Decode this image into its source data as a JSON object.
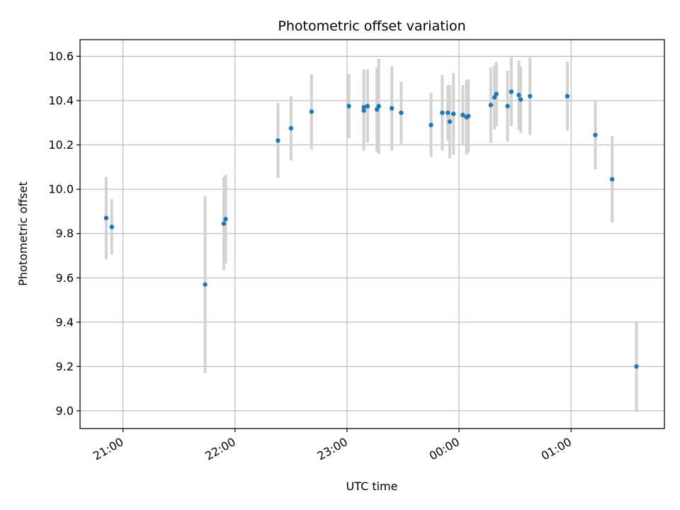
{
  "chart_data": {
    "type": "scatter",
    "title": "Photometric offset variation",
    "xlabel": "UTC time",
    "ylabel": "Photometric offset",
    "x_unit": "UTC time (HH:MM)",
    "xlim": [
      "20:37",
      "01:50"
    ],
    "ylim": [
      8.92,
      10.675
    ],
    "grid": true,
    "x_ticks": [
      "21:00",
      "22:00",
      "23:00",
      "00:00",
      "01:00"
    ],
    "y_ticks": [
      "9.0",
      "9.2",
      "9.4",
      "9.6",
      "9.8",
      "10.0",
      "10.2",
      "10.4",
      "10.6"
    ],
    "series": [
      {
        "marker_color": "#1f77b4",
        "errorbar_color": "#d3d3d3",
        "points": [
          {
            "x": "20:51",
            "y": 9.87,
            "err": 0.185
          },
          {
            "x": "20:54",
            "y": 9.83,
            "err": 0.125
          },
          {
            "x": "21:44",
            "y": 9.57,
            "err": 0.4
          },
          {
            "x": "21:54",
            "y": 9.845,
            "err": 0.21
          },
          {
            "x": "21:55",
            "y": 9.865,
            "err": 0.2
          },
          {
            "x": "22:23",
            "y": 10.22,
            "err": 0.17
          },
          {
            "x": "22:30",
            "y": 10.275,
            "err": 0.145
          },
          {
            "x": "22:41",
            "y": 10.35,
            "err": 0.17
          },
          {
            "x": "23:01",
            "y": 10.375,
            "err": 0.145
          },
          {
            "x": "23:09",
            "y": 10.37,
            "err": 0.17
          },
          {
            "x": "23:09",
            "y": 10.355,
            "err": 0.18
          },
          {
            "x": "23:11",
            "y": 10.375,
            "err": 0.165
          },
          {
            "x": "23:16",
            "y": 10.36,
            "err": 0.19
          },
          {
            "x": "23:17",
            "y": 10.375,
            "err": 0.215
          },
          {
            "x": "23:24",
            "y": 10.365,
            "err": 0.19
          },
          {
            "x": "23:29",
            "y": 10.345,
            "err": 0.14
          },
          {
            "x": "23:45",
            "y": 10.29,
            "err": 0.145
          },
          {
            "x": "23:51",
            "y": 10.345,
            "err": 0.17
          },
          {
            "x": "23:54",
            "y": 10.345,
            "err": 0.125
          },
          {
            "x": "23:55",
            "y": 10.305,
            "err": 0.165
          },
          {
            "x": "23:57",
            "y": 10.34,
            "err": 0.185
          },
          {
            "x": "00:02",
            "y": 10.335,
            "err": 0.135
          },
          {
            "x": "00:04",
            "y": 10.325,
            "err": 0.17
          },
          {
            "x": "00:05",
            "y": 10.33,
            "err": 0.165
          },
          {
            "x": "00:17",
            "y": 10.38,
            "err": 0.17
          },
          {
            "x": "00:19",
            "y": 10.415,
            "err": 0.145
          },
          {
            "x": "00:20",
            "y": 10.43,
            "err": 0.145
          },
          {
            "x": "00:26",
            "y": 10.375,
            "err": 0.16
          },
          {
            "x": "00:28",
            "y": 10.44,
            "err": 0.155
          },
          {
            "x": "00:32",
            "y": 10.425,
            "err": 0.155
          },
          {
            "x": "00:33",
            "y": 10.405,
            "err": 0.15
          },
          {
            "x": "00:38",
            "y": 10.42,
            "err": 0.175
          },
          {
            "x": "00:58",
            "y": 10.42,
            "err": 0.155
          },
          {
            "x": "01:13",
            "y": 10.245,
            "err": 0.155
          },
          {
            "x": "01:22",
            "y": 10.045,
            "err": 0.195
          },
          {
            "x": "01:35",
            "y": 9.2,
            "err": 0.205
          }
        ]
      }
    ]
  }
}
